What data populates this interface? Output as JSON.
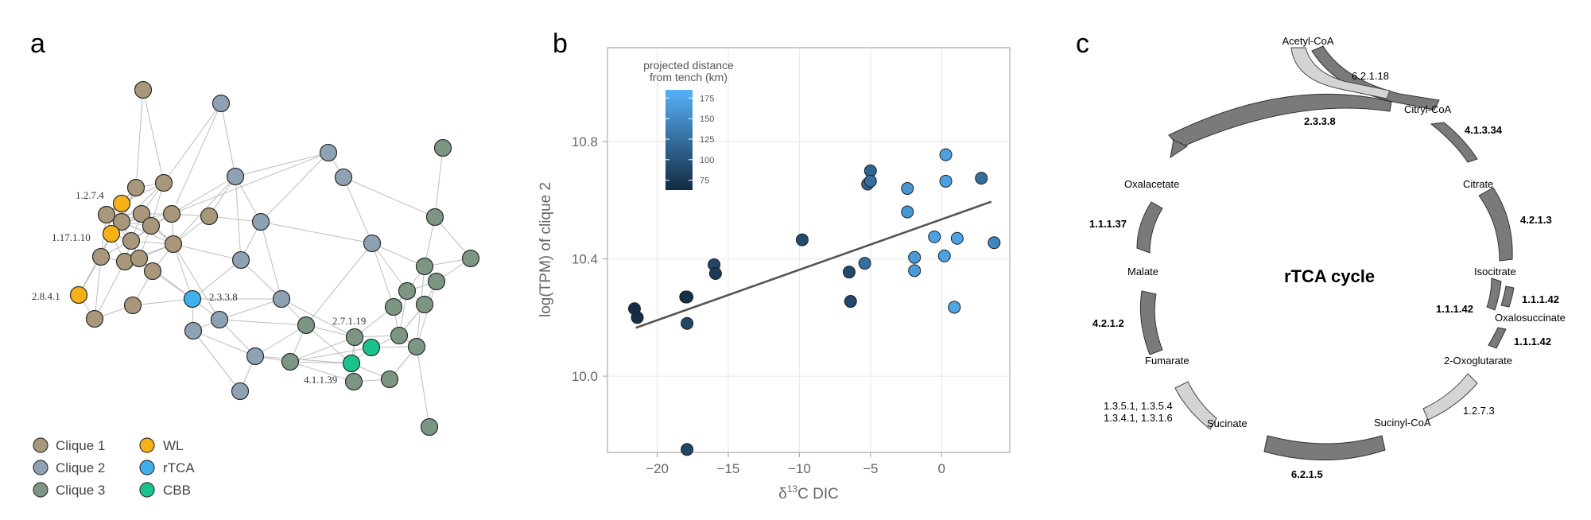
{
  "panels": {
    "a": "a",
    "b": "b",
    "c": "c"
  },
  "network": {
    "colors": {
      "Clique 1": "#a8977a",
      "Clique 2": "#8fa2b3",
      "Clique 3": "#7d9683",
      "WL": "#f5b117",
      "rTCA": "#3fb0ec",
      "CBB": "#19c38e"
    },
    "labels": {
      "n1274": "1.2.7.4",
      "n11710": "1.17.1.10",
      "n2841": "2.8.4.1",
      "n2338": "2.3.3.8",
      "n27119": "2.7.1.19",
      "n41139": "4.1.1.39"
    },
    "legend": [
      {
        "label": "Clique 1",
        "color": "#a8977a"
      },
      {
        "label": "Clique 2",
        "color": "#8fa2b3"
      },
      {
        "label": "Clique 3",
        "color": "#7d9683"
      },
      {
        "label": "WL",
        "color": "#f5b117"
      },
      {
        "label": "rTCA",
        "color": "#3fb0ec"
      },
      {
        "label": "CBB",
        "color": "#19c38e"
      }
    ]
  },
  "chart_data": {
    "type": "scatter",
    "xlabel_prefix": "δ",
    "xlabel_sup": "13",
    "xlabel_suffix": "C DIC",
    "ylabel": "log(TPM) of clique 2",
    "xlim": [
      -23.5,
      4.8
    ],
    "ylim": [
      9.74,
      11.12
    ],
    "xticks": [
      -20,
      -15,
      -10,
      -5,
      0
    ],
    "yticks": [
      10.0,
      10.4,
      10.8
    ],
    "ytick_labels": [
      "10.0",
      "10.4",
      "10.8"
    ],
    "grid": true,
    "colorbar": {
      "title_line1": "projected distance",
      "title_line2": "from tench (km)",
      "ticks": [
        75,
        100,
        125,
        150,
        175
      ],
      "range": [
        63,
        185
      ],
      "color_low": "#132b43",
      "color_high": "#56b1f7"
    },
    "trend_line": {
      "x": [
        -21.5,
        3.5
      ],
      "y": [
        10.165,
        10.595
      ]
    },
    "points": [
      {
        "x": -21.6,
        "y": 10.23,
        "c": 65
      },
      {
        "x": -21.4,
        "y": 10.2,
        "c": 66
      },
      {
        "x": -18.0,
        "y": 10.27,
        "c": 68
      },
      {
        "x": -17.9,
        "y": 10.27,
        "c": 68
      },
      {
        "x": -17.9,
        "y": 10.18,
        "c": 88
      },
      {
        "x": -16.0,
        "y": 10.38,
        "c": 88
      },
      {
        "x": -15.9,
        "y": 10.35,
        "c": 78
      },
      {
        "x": -17.9,
        "y": 9.75,
        "c": 88
      },
      {
        "x": -9.8,
        "y": 10.465,
        "c": 92
      },
      {
        "x": -6.5,
        "y": 10.355,
        "c": 90
      },
      {
        "x": -6.4,
        "y": 10.255,
        "c": 90
      },
      {
        "x": -5.4,
        "y": 10.385,
        "c": 125
      },
      {
        "x": -5.2,
        "y": 10.655,
        "c": 115
      },
      {
        "x": -5.0,
        "y": 10.7,
        "c": 115
      },
      {
        "x": -5.0,
        "y": 10.665,
        "c": 125
      },
      {
        "x": -2.4,
        "y": 10.64,
        "c": 160
      },
      {
        "x": -2.4,
        "y": 10.56,
        "c": 160
      },
      {
        "x": -1.9,
        "y": 10.405,
        "c": 165
      },
      {
        "x": -1.9,
        "y": 10.36,
        "c": 165
      },
      {
        "x": -0.5,
        "y": 10.475,
        "c": 170
      },
      {
        "x": 0.3,
        "y": 10.755,
        "c": 170
      },
      {
        "x": 0.3,
        "y": 10.665,
        "c": 170
      },
      {
        "x": 0.2,
        "y": 10.41,
        "c": 170
      },
      {
        "x": 0.9,
        "y": 10.235,
        "c": 175
      },
      {
        "x": 1.1,
        "y": 10.47,
        "c": 170
      },
      {
        "x": 2.8,
        "y": 10.675,
        "c": 125
      },
      {
        "x": 3.7,
        "y": 10.455,
        "c": 145
      }
    ]
  },
  "cycle": {
    "title": "rTCA cycle",
    "metabolites": {
      "acetyl_coa": "Acetyl-CoA",
      "citryl_coa": "Citryl-CoA",
      "citrate": "Citrate",
      "isocitrate": "Isocitrate",
      "oxalosuccinate": "Oxalosuccinate",
      "oxoglutarate": "2-Oxoglutarate",
      "succinyl_coa": "Sucinyl-CoA",
      "succinate": "Sucinate",
      "fumarate": "Fumarate",
      "malate": "Malate",
      "oxalacetate": "Oxalacetate"
    },
    "enzymes": {
      "e62118": "6.2.1.18",
      "e2338": "2.3.3.8",
      "e41334": "4.1.3.34",
      "e4213": "4.2.1.3",
      "e11142a": "1.1.1.42",
      "e11142b": "1.1.1.42",
      "e11142c": "1.1.1.42",
      "e1273": "1.2.7.3",
      "e6215": "6.2.1.5",
      "e1351": "1.3.5.1, 1.3.5.4",
      "e1341": "1.3.4.1, 1.3.1.6",
      "e4212": "4.2.1.2",
      "e11137": "1.1.1.37"
    }
  }
}
